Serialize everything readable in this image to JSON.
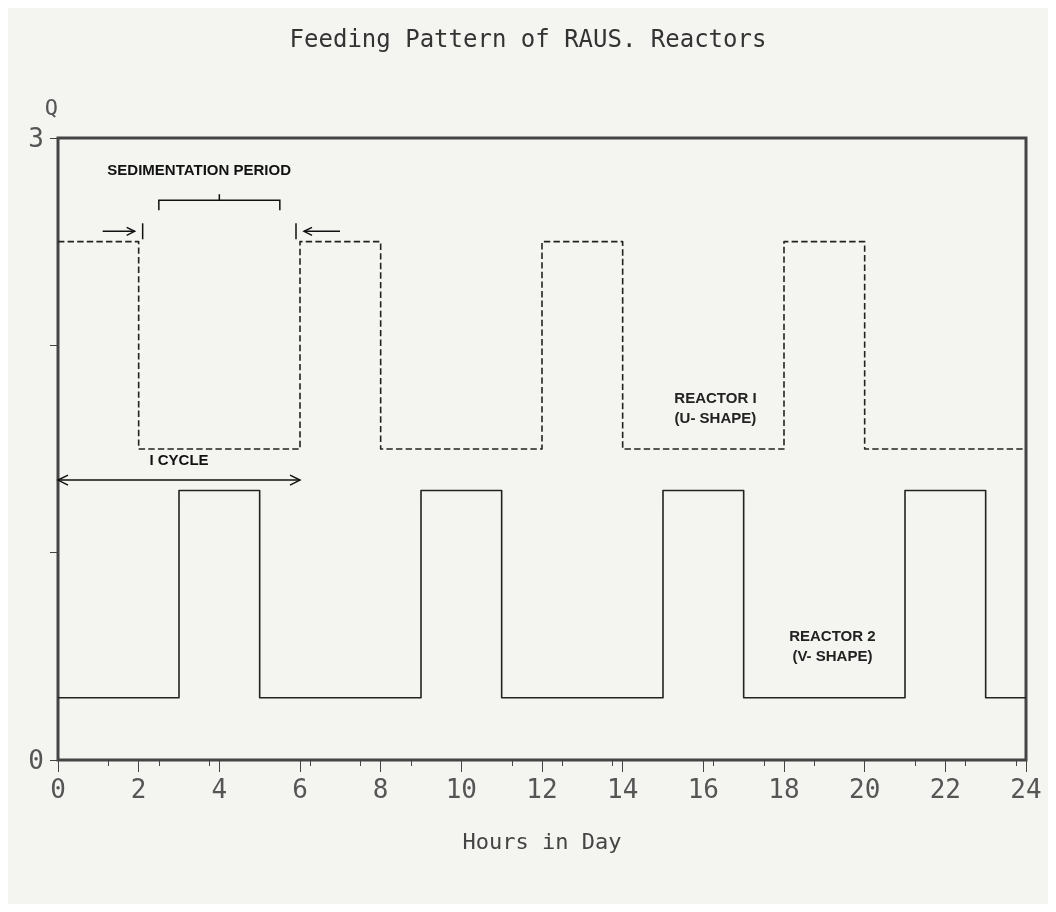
{
  "chart_data": {
    "type": "step",
    "title": "Feeding Pattern of RAUS. Reactors",
    "xlabel": "Hours in Day",
    "ylabel": "Q",
    "series": [
      {
        "name": "REACTOR I\n(U- SHAPE)",
        "color": "#222222",
        "line_style": "dashed",
        "x": [
          0,
          2,
          6,
          8,
          12,
          14,
          18,
          20,
          24
        ],
        "values": [
          2.5,
          1.5,
          2.5,
          1.5,
          2.5,
          1.5,
          2.5,
          1.5,
          1.5
        ]
      },
      {
        "name": "REACTOR 2\n(V- SHAPE)",
        "color": "#222222",
        "line_style": "solid",
        "x": [
          0,
          3,
          5,
          9,
          11,
          15,
          17,
          21,
          23,
          24
        ],
        "values": [
          0.3,
          1.3,
          0.3,
          1.3,
          0.3,
          1.3,
          0.3,
          1.3,
          0.3,
          0.3
        ]
      }
    ],
    "xlim": [
      0,
      24
    ],
    "xticks": [
      0,
      2,
      4,
      6,
      8,
      10,
      12,
      14,
      16,
      18,
      20,
      22,
      24
    ],
    "ylim": [
      0,
      3
    ],
    "yticks": [
      0,
      {
        "value": 1,
        "label": null
      },
      {
        "value": 2,
        "label": null
      },
      3
    ],
    "grid": false,
    "legend": false,
    "marker": "none",
    "annotations": [
      "SEDIMENTATION PERIOD",
      "I CYCLE"
    ]
  }
}
